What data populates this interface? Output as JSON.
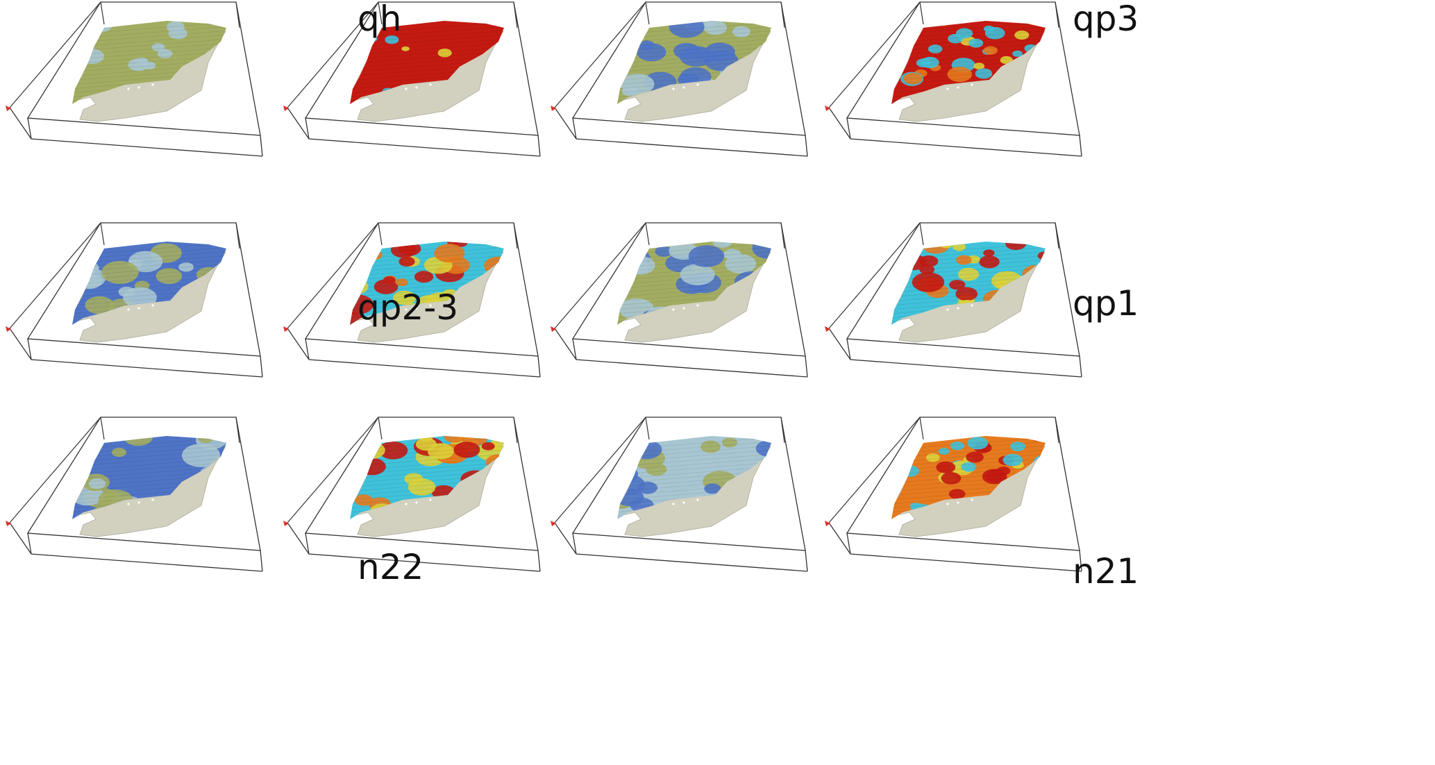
{
  "figure": {
    "colors": {
      "base_terrain": "#d2d0bf",
      "lithology_olive": "#a3ad62",
      "lithology_lightblue": "#a8c6d2",
      "lithology_blue": "#4f74c6",
      "property_red": "#c41a12",
      "property_orange": "#e67a1e",
      "property_yellow": "#ddd23a",
      "property_cyan": "#3fc2da",
      "frame_line": "#333333",
      "axis_marker": "#e0302a"
    },
    "rows": [
      {
        "pairs": [
          {
            "layer_label": "qh",
            "lithology_scheme": "olive",
            "property_scheme": "red"
          },
          {
            "layer_label": "qp3",
            "lithology_scheme": "mixed",
            "property_scheme": "redcyan"
          }
        ]
      },
      {
        "pairs": [
          {
            "layer_label": "qp2-3",
            "lithology_scheme": "blue",
            "property_scheme": "cyanred"
          },
          {
            "layer_label": "qp1",
            "lithology_scheme": "mixedblue",
            "property_scheme": "cyanred"
          }
        ]
      },
      {
        "pairs": [
          {
            "layer_label": "n22",
            "lithology_scheme": "blue",
            "property_scheme": "cyanred"
          },
          {
            "layer_label": "n21",
            "lithology_scheme": "lightblue",
            "property_scheme": "yellowred"
          }
        ]
      }
    ]
  }
}
